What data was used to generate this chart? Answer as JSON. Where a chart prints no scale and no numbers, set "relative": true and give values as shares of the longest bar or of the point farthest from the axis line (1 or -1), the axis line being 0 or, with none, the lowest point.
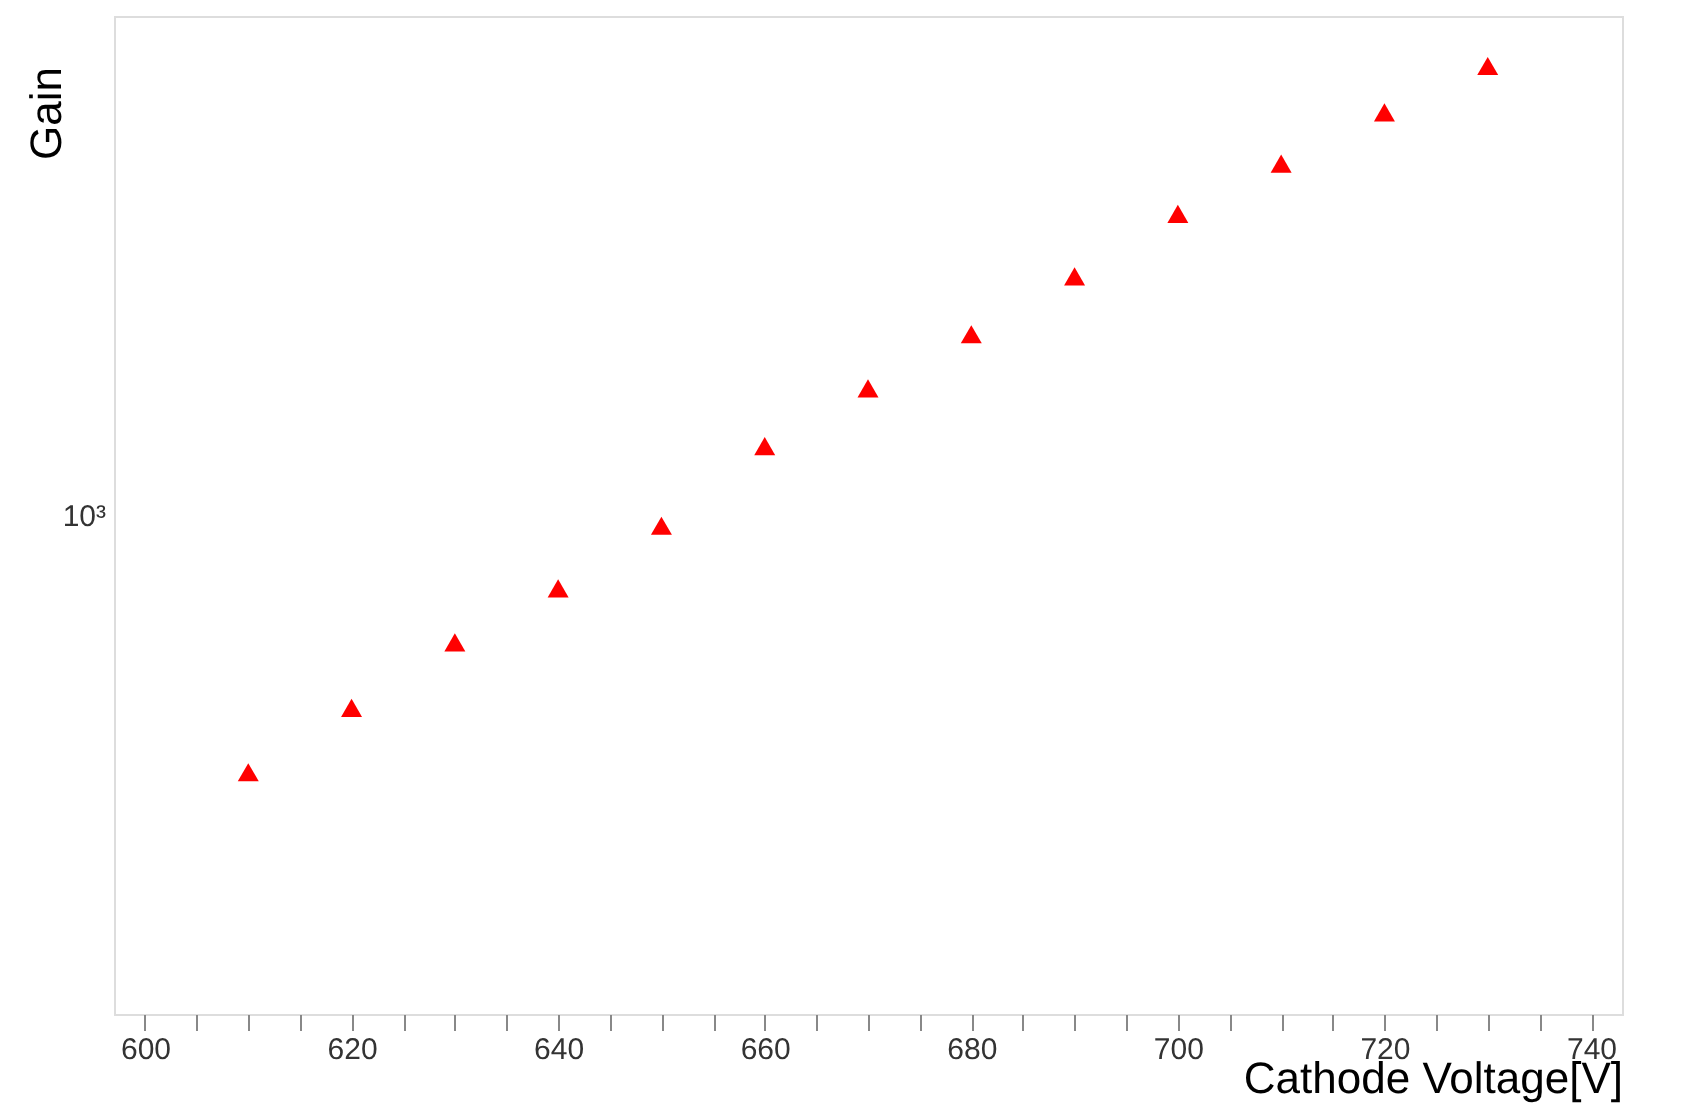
{
  "chart_data": {
    "type": "scatter",
    "xlabel": "Cathode Voltage[V]",
    "ylabel": "Gain",
    "x": [
      610,
      620,
      630,
      640,
      650,
      660,
      670,
      680,
      690,
      700,
      710,
      720,
      730
    ],
    "series": [
      {
        "color": "#ff0000",
        "values": [
          0.255,
          0.323,
          0.392,
          0.449,
          0.515,
          0.599,
          0.66,
          0.717,
          0.778,
          0.844,
          0.897,
          0.951,
          1
        ]
      }
    ],
    "relative": true,
    "annotations": [
      "10³"
    ],
    "marker": "triangle",
    "grid": false,
    "xlim": [
      597,
      743
    ],
    "xticks": [
      600,
      {
        "value": 605,
        "label": null
      },
      {
        "value": 610,
        "label": null
      },
      {
        "value": 615,
        "label": null
      },
      620,
      {
        "value": 625,
        "label": null
      },
      {
        "value": 630,
        "label": null
      },
      {
        "value": 635,
        "label": null
      },
      640,
      {
        "value": 645,
        "label": null
      },
      {
        "value": 650,
        "label": null
      },
      {
        "value": 655,
        "label": null
      },
      660,
      {
        "value": 665,
        "label": null
      },
      {
        "value": 670,
        "label": null
      },
      {
        "value": 675,
        "label": null
      },
      680,
      {
        "value": 685,
        "label": null
      },
      {
        "value": 690,
        "label": null
      },
      {
        "value": 695,
        "label": null
      },
      700,
      {
        "value": 705,
        "label": null
      },
      {
        "value": 710,
        "label": null
      },
      {
        "value": 715,
        "label": null
      },
      720,
      {
        "value": 725,
        "label": null
      },
      {
        "value": 730,
        "label": null
      },
      {
        "value": 735,
        "label": null
      },
      740
    ]
  }
}
